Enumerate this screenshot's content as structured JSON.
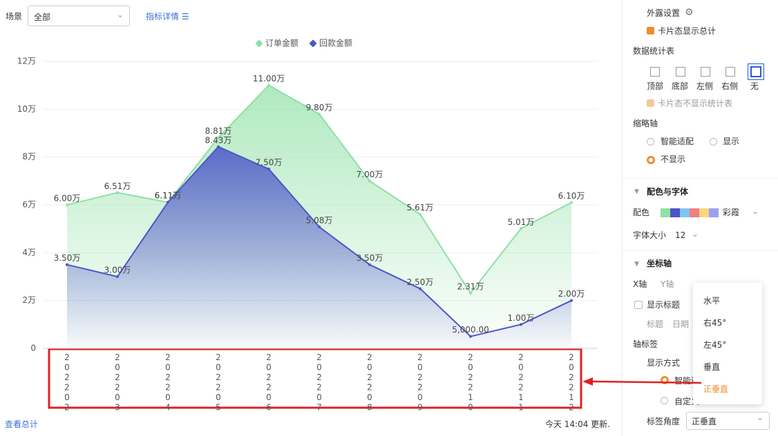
{
  "toolbar": {
    "scene_label": "场景",
    "scene_value": "全部",
    "detail_link": "指标详情"
  },
  "chart_data": {
    "type": "line",
    "categories": [
      "202202",
      "202203",
      "202204",
      "202205",
      "202206",
      "202207",
      "202208",
      "202209",
      "202210",
      "202211",
      "202212"
    ],
    "series": [
      {
        "name": "订单金额",
        "color": "#8ee0a4",
        "values": [
          60000,
          65100,
          61100,
          88100,
          110000,
          98000,
          70000,
          56100,
          23100,
          50100,
          61000
        ],
        "value_labels": [
          "6.00万",
          "6.51万",
          "6.11万",
          "8.81万",
          "11.00万",
          "9.80万",
          "7.00万",
          "5.61万",
          "2.31万",
          "5.01万",
          "6.10万"
        ]
      },
      {
        "name": "回款金额",
        "color": "#4b54c8",
        "values": [
          35000,
          30000,
          61100,
          84300,
          75000,
          50800,
          35000,
          25000,
          5000,
          10000,
          20000
        ],
        "value_labels": [
          "3.50万",
          "3.00万",
          "6.11万",
          "8.43万",
          "7.50万",
          "5.08万",
          "3.50万",
          "2.50万",
          "5,000.00",
          "1.00万",
          "2.00万"
        ]
      }
    ],
    "ylim": [
      0,
      120000
    ],
    "yticks": [
      0,
      {
        "value": 20000,
        "label": "2万"
      },
      {
        "value": 40000,
        "label": "4万"
      },
      {
        "value": 60000,
        "label": "6万"
      },
      {
        "value": 80000,
        "label": "8万"
      },
      {
        "value": 100000,
        "label": "10万"
      },
      {
        "value": 120000,
        "label": "12万"
      }
    ],
    "grid": true,
    "area": true
  },
  "footer": {
    "total_link": "查看总计",
    "updated": "今天 14:04 更新."
  },
  "panel": {
    "exposure": "外露设置",
    "card_total": "卡片态显示总计",
    "stat_table": "数据统计表",
    "positions": [
      "顶部",
      "底部",
      "左侧",
      "右侧",
      "无"
    ],
    "card_no_table": "卡片态不显示统计表",
    "thumb_axis": "缩略轴",
    "thumb_options": [
      "智能适配",
      "显示",
      "不显示"
    ],
    "color_font": "配色与字体",
    "palette_label": "配色",
    "palette_name": "彩霞",
    "font_size_label": "字体大小",
    "font_size": "12",
    "axis": "坐标轴",
    "axis_tabs": [
      "X轴",
      "Y轴"
    ],
    "show_title": "显示标题",
    "title_options": [
      "标题",
      "日期"
    ],
    "axis_label": "轴标签",
    "display_mode": "显示方式",
    "mode_options": [
      "智能适配",
      "自定义"
    ],
    "label_angle": "标签角度",
    "label_angle_value": "正垂直"
  },
  "dropdown": {
    "options": [
      "水平",
      "右45°",
      "左45°",
      "垂直",
      "正垂直"
    ]
  }
}
